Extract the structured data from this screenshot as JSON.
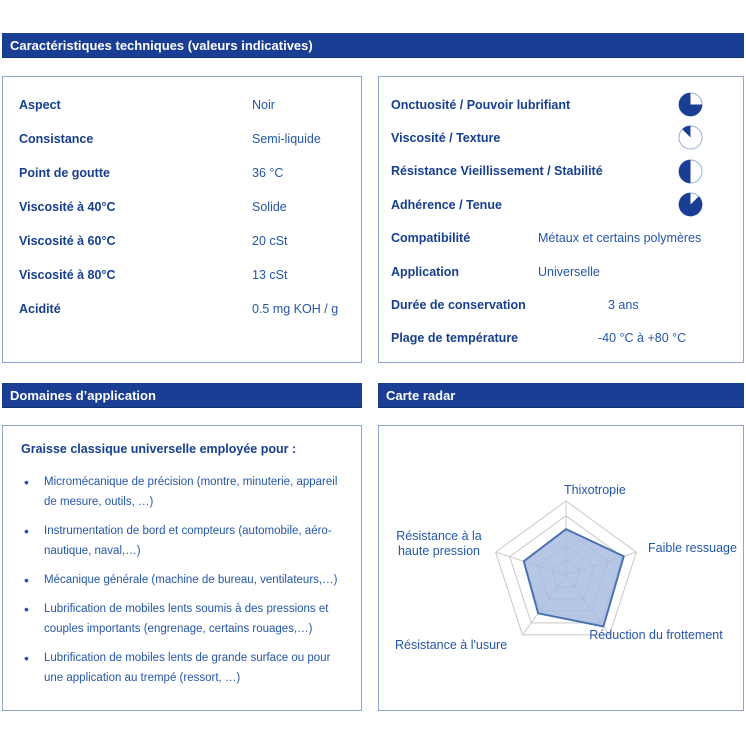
{
  "colors": {
    "header_bar": "#1a3e94",
    "label_text": "#163f8f",
    "value_text": "#2456a8",
    "box_border": "#8ea6cd",
    "pie_fill": "#1a3e94",
    "pie_outline": "#93abd2",
    "radar_grid": "#c8c8c8",
    "radar_fill": "#a5bbdf",
    "radar_stroke": "#4a71b0"
  },
  "sections": {
    "tech": {
      "title": "Caractéristiques techniques (valeurs indicatives)"
    },
    "domains": {
      "title": "Domaines d’application"
    },
    "radar": {
      "title": "Carte radar"
    }
  },
  "spec_left": {
    "rows": [
      {
        "label": "Aspect",
        "value": "Noir"
      },
      {
        "label": "Consistance",
        "value": "Semi-liquide"
      },
      {
        "label": "Point de goutte",
        "value": "36 °C"
      },
      {
        "label": "Viscosité à 40°C",
        "value": "Solide"
      },
      {
        "label": "Viscosité à 60°C",
        "value": "20 cSt"
      },
      {
        "label": "Viscosité à 80°C",
        "value": "13 cSt"
      },
      {
        "label": "Acidité",
        "value": "0.5 mg KOH / g"
      }
    ]
  },
  "spec_right": {
    "pie_rows": [
      {
        "label": "Onctuosité / Pouvoir lubrifiant",
        "rating": 0.75
      },
      {
        "label": "Viscosité / Texture",
        "rating": 0.125
      },
      {
        "label": "Résistance Vieillissement / Stabilité",
        "rating": 0.5
      },
      {
        "label": "Adhérence / Tenue",
        "rating": 0.875
      }
    ],
    "text_rows": [
      {
        "label": "Compatibilité",
        "value": "Métaux et certains polymères"
      },
      {
        "label": "Application",
        "value": "Universelle"
      },
      {
        "label": "Durée de conservation",
        "value": "3 ans"
      },
      {
        "label": "Plage de température",
        "value": "-40 °C à +80 °C"
      }
    ]
  },
  "applications": {
    "heading": "Graisse classique universelle employée pour :",
    "bullets": [
      "Micromécanique de précision (montre, minuterie, appareil de mesure, outils, …)",
      "Instrumentation de bord et compteurs (automobile, aéro-nautique, naval,…)",
      "Mécanique générale (machine de bureau, ventilateurs,…)",
      "Lubrification de mobiles lents soumis à des pressions et couples importants (engrenage, certains rouages,…)",
      "Lubrification de mobiles lents de grande surface ou pour une application au trempé (ressort, …)"
    ]
  },
  "chart_data": {
    "type": "radar",
    "title": "Carte radar",
    "categories": [
      "Thixotropie",
      "Faible ressuage",
      "Réduction du frottement",
      "Résistance à l'usure",
      "Résistance à la haute pression"
    ],
    "values": [
      0.62,
      0.82,
      0.86,
      0.64,
      0.6
    ],
    "scale_max": 1,
    "rings": 5,
    "grid": true,
    "legend": "none"
  }
}
